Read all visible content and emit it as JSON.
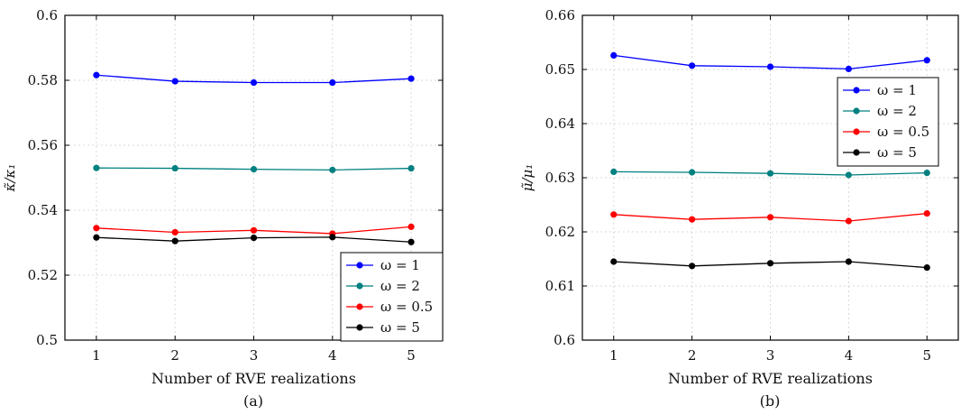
{
  "chart_data": [
    {
      "id": "a",
      "type": "line",
      "caption": "(a)",
      "xlabel": "Number of RVE realizations",
      "ylabel": "κ̃/κ₁",
      "x": [
        1,
        2,
        3,
        4,
        5
      ],
      "xlim": [
        0.6,
        5.4
      ],
      "ylim": [
        0.5,
        0.6
      ],
      "xticks": [
        "1",
        "2",
        "3",
        "4",
        "5"
      ],
      "yticks": [
        "0.5",
        "0.52",
        "0.54",
        "0.56",
        "0.58",
        "0.6"
      ],
      "ytick_values": [
        0.5,
        0.52,
        0.54,
        0.56,
        0.58,
        0.6
      ],
      "grid": true,
      "legend_position": "bottom-right",
      "series": [
        {
          "name": "ω = 1",
          "color": "#0000ff",
          "values": [
            0.5816,
            0.5797,
            0.5793,
            0.5793,
            0.5805
          ]
        },
        {
          "name": "ω = 2",
          "color": "#008080",
          "values": [
            0.553,
            0.5529,
            0.5526,
            0.5524,
            0.5529
          ]
        },
        {
          "name": "ω = 0.5",
          "color": "#ff0000",
          "values": [
            0.5345,
            0.5332,
            0.5338,
            0.5328,
            0.5349
          ]
        },
        {
          "name": "ω = 5",
          "color": "#000000",
          "values": [
            0.5316,
            0.5305,
            0.5315,
            0.5317,
            0.5302
          ]
        }
      ]
    },
    {
      "id": "b",
      "type": "line",
      "caption": "(b)",
      "xlabel": "Number of RVE realizations",
      "ylabel": "μ̃/μ₁",
      "x": [
        1,
        2,
        3,
        4,
        5
      ],
      "xlim": [
        0.6,
        5.4
      ],
      "ylim": [
        0.6,
        0.66
      ],
      "xticks": [
        "1",
        "2",
        "3",
        "4",
        "5"
      ],
      "yticks": [
        "0.6",
        "0.61",
        "0.62",
        "0.63",
        "0.64",
        "0.65",
        "0.66"
      ],
      "ytick_values": [
        0.6,
        0.61,
        0.62,
        0.63,
        0.64,
        0.65,
        0.66
      ],
      "grid": true,
      "legend_position": "top-right",
      "series": [
        {
          "name": "ω = 1",
          "color": "#0000ff",
          "values": [
            0.6526,
            0.6507,
            0.6505,
            0.6501,
            0.6517
          ]
        },
        {
          "name": "ω = 2",
          "color": "#008080",
          "values": [
            0.6311,
            0.631,
            0.6308,
            0.6305,
            0.6309
          ]
        },
        {
          "name": "ω = 0.5",
          "color": "#ff0000",
          "values": [
            0.6232,
            0.6223,
            0.6227,
            0.622,
            0.6234
          ]
        },
        {
          "name": "ω = 5",
          "color": "#000000",
          "values": [
            0.6145,
            0.6137,
            0.6142,
            0.6145,
            0.6134
          ]
        }
      ]
    }
  ]
}
